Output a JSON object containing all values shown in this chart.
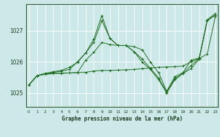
{
  "background_color": "#cce8e8",
  "grid_color": "#ffffff",
  "line_color": "#1a6b1a",
  "title": "Graphe pression niveau de la mer (hPa)",
  "xlabel_ticks": [
    0,
    1,
    2,
    3,
    4,
    5,
    6,
    7,
    8,
    9,
    10,
    11,
    12,
    13,
    14,
    15,
    16,
    17,
    18,
    19,
    20,
    21,
    22,
    23
  ],
  "yticks": [
    1025,
    1026,
    1027
  ],
  "ylim": [
    1024.55,
    1027.85
  ],
  "xlim": [
    -0.3,
    23.3
  ],
  "series": [
    [
      1025.25,
      1025.55,
      1025.6,
      1025.62,
      1025.63,
      1025.64,
      1025.65,
      1025.66,
      1025.7,
      1025.72,
      1025.72,
      1025.73,
      1025.74,
      1025.75,
      1025.78,
      1025.8,
      1025.82,
      1025.83,
      1025.84,
      1025.86,
      1026.0,
      1026.1,
      1026.25,
      1027.45
    ],
    [
      1025.25,
      1025.55,
      1025.6,
      1025.62,
      1025.63,
      1025.64,
      1025.65,
      1026.05,
      1026.3,
      1026.62,
      1026.55,
      1026.52,
      1026.52,
      1026.48,
      1026.38,
      1025.98,
      1025.65,
      1025.05,
      1025.52,
      1025.65,
      1026.05,
      1026.12,
      1027.32,
      1027.5
    ],
    [
      1025.25,
      1025.55,
      1025.62,
      1025.65,
      1025.7,
      1025.75,
      1026.0,
      1026.28,
      1026.62,
      1027.32,
      1026.75,
      1026.52,
      1026.52,
      1026.32,
      1025.98,
      1025.75,
      1025.42,
      1025.0,
      1025.42,
      1025.62,
      1025.78,
      1026.08,
      1027.32,
      1027.5
    ],
    [
      1025.25,
      1025.55,
      1025.62,
      1025.68,
      1025.72,
      1025.82,
      1025.98,
      1026.28,
      1026.72,
      1027.48,
      1026.75,
      1026.52,
      1026.52,
      1026.32,
      1026.08,
      1025.78,
      1025.48,
      1025.02,
      1025.46,
      1025.62,
      1025.88,
      1026.1,
      1027.35,
      1027.55
    ]
  ]
}
